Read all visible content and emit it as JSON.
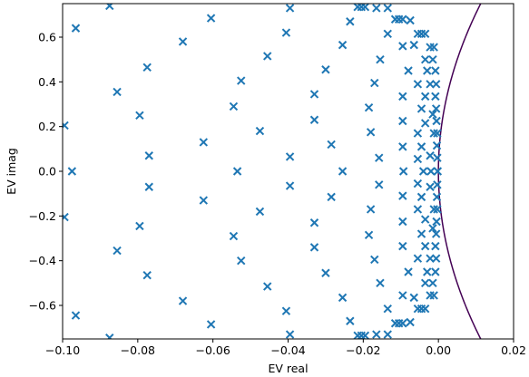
{
  "chart_data": {
    "type": "scatter",
    "title": "",
    "xlabel": "EV real",
    "ylabel": "EV imag",
    "xlim": [
      -0.1,
      0.02
    ],
    "ylim": [
      -0.75,
      0.75
    ],
    "xticks": [
      -0.1,
      -0.08,
      -0.06,
      -0.04,
      -0.02,
      0.0,
      0.02
    ],
    "xtick_labels": [
      "−0.10",
      "−0.08",
      "−0.06",
      "−0.04",
      "−0.02",
      "0.00",
      "0.02"
    ],
    "yticks": [
      -0.6,
      -0.4,
      -0.2,
      0.0,
      0.2,
      0.4,
      0.6
    ],
    "ytick_labels": [
      "−0.6",
      "−0.4",
      "−0.2",
      "0.0",
      "0.2",
      "0.4",
      "0.6"
    ],
    "grid": false,
    "legend": "none",
    "marker": "x",
    "marker_color": "#1f77b4",
    "curve_color": "#440154",
    "series": [
      {
        "points": [
          [
            -0.0995,
            0.205
          ],
          [
            -0.0995,
            -0.205
          ],
          [
            -0.0975,
            0.0
          ],
          [
            -0.0965,
            0.64
          ],
          [
            -0.0965,
            -0.645
          ],
          [
            -0.0875,
            0.74
          ],
          [
            -0.0875,
            -0.745
          ],
          [
            -0.0855,
            0.355
          ],
          [
            -0.0855,
            -0.355
          ],
          [
            -0.0795,
            0.25
          ],
          [
            -0.0795,
            -0.245
          ],
          [
            -0.0775,
            0.465
          ],
          [
            -0.0775,
            -0.465
          ],
          [
            -0.077,
            0.07
          ],
          [
            -0.077,
            -0.07
          ],
          [
            -0.068,
            0.58
          ],
          [
            -0.068,
            -0.58
          ],
          [
            -0.0625,
            0.13
          ],
          [
            -0.0625,
            -0.13
          ],
          [
            -0.0605,
            0.685
          ],
          [
            -0.0605,
            -0.685
          ],
          [
            -0.0545,
            0.29
          ],
          [
            -0.0545,
            -0.29
          ],
          [
            -0.0535,
            0.0
          ],
          [
            -0.0525,
            0.405
          ],
          [
            -0.0525,
            -0.4
          ],
          [
            -0.0475,
            0.18
          ],
          [
            -0.0475,
            -0.18
          ],
          [
            -0.0455,
            0.515
          ],
          [
            -0.0455,
            -0.515
          ],
          [
            -0.0405,
            0.62
          ],
          [
            -0.0405,
            -0.625
          ],
          [
            -0.0395,
            0.73
          ],
          [
            -0.0395,
            -0.73
          ],
          [
            -0.0395,
            0.065
          ],
          [
            -0.0395,
            -0.065
          ],
          [
            -0.033,
            0.345
          ],
          [
            -0.033,
            -0.34
          ],
          [
            -0.033,
            0.23
          ],
          [
            -0.033,
            -0.23
          ],
          [
            -0.03,
            0.455
          ],
          [
            -0.03,
            -0.455
          ],
          [
            -0.0285,
            0.12
          ],
          [
            -0.0285,
            -0.115
          ],
          [
            -0.0255,
            0.0
          ],
          [
            -0.0255,
            0.565
          ],
          [
            -0.0255,
            -0.565
          ],
          [
            -0.0235,
            0.67
          ],
          [
            -0.0235,
            -0.67
          ],
          [
            -0.0215,
            0.735
          ],
          [
            -0.0205,
            0.735
          ],
          [
            -0.0195,
            0.735
          ],
          [
            -0.0215,
            -0.735
          ],
          [
            -0.0205,
            -0.735
          ],
          [
            -0.0195,
            -0.735
          ],
          [
            -0.0185,
            0.285
          ],
          [
            -0.0185,
            -0.285
          ],
          [
            -0.018,
            0.175
          ],
          [
            -0.018,
            -0.17
          ],
          [
            -0.017,
            0.395
          ],
          [
            -0.017,
            -0.395
          ],
          [
            -0.0165,
            0.73
          ],
          [
            -0.0165,
            -0.73
          ],
          [
            -0.0158,
            0.06
          ],
          [
            -0.0158,
            -0.06
          ],
          [
            -0.0155,
            0.5
          ],
          [
            -0.0155,
            -0.5
          ],
          [
            -0.0135,
            0.73
          ],
          [
            -0.0135,
            -0.73
          ],
          [
            -0.0135,
            0.615
          ],
          [
            -0.0135,
            -0.615
          ],
          [
            -0.0115,
            0.68
          ],
          [
            -0.0105,
            0.68
          ],
          [
            -0.0095,
            0.68
          ],
          [
            -0.0115,
            -0.68
          ],
          [
            -0.0105,
            -0.68
          ],
          [
            -0.0095,
            -0.68
          ],
          [
            -0.0095,
            0.56
          ],
          [
            -0.0095,
            -0.555
          ],
          [
            -0.0095,
            0.335
          ],
          [
            -0.0095,
            -0.335
          ],
          [
            -0.0095,
            0.225
          ],
          [
            -0.0095,
            -0.225
          ],
          [
            -0.0095,
            0.11
          ],
          [
            -0.0095,
            -0.11
          ],
          [
            -0.0093,
            0.0
          ],
          [
            -0.008,
            0.45
          ],
          [
            -0.008,
            -0.45
          ],
          [
            -0.0075,
            0.675
          ],
          [
            -0.0075,
            -0.675
          ],
          [
            -0.0065,
            0.565
          ],
          [
            -0.0065,
            -0.565
          ],
          [
            -0.0055,
            0.615
          ],
          [
            -0.0045,
            0.615
          ],
          [
            -0.0035,
            0.615
          ],
          [
            -0.0055,
            -0.615
          ],
          [
            -0.0045,
            -0.615
          ],
          [
            -0.0035,
            -0.615
          ],
          [
            -0.0055,
            0.17
          ],
          [
            -0.0055,
            -0.17
          ],
          [
            -0.0055,
            0.055
          ],
          [
            -0.0055,
            -0.055
          ],
          [
            -0.0055,
            0.39
          ],
          [
            -0.0055,
            -0.39
          ],
          [
            -0.0045,
            0.28
          ],
          [
            -0.0045,
            -0.28
          ],
          [
            -0.0045,
            0.11
          ],
          [
            -0.0045,
            -0.115
          ],
          [
            -0.004,
            0.0
          ],
          [
            -0.0035,
            0.215
          ],
          [
            -0.0035,
            -0.215
          ],
          [
            -0.0035,
            0.335
          ],
          [
            -0.0035,
            -0.335
          ],
          [
            -0.0035,
            0.5
          ],
          [
            -0.0035,
            -0.5
          ],
          [
            -0.003,
            0.45
          ],
          [
            -0.003,
            -0.45
          ],
          [
            -0.0022,
            0.555
          ],
          [
            -0.0012,
            0.555
          ],
          [
            -0.0022,
            -0.555
          ],
          [
            -0.0012,
            -0.555
          ],
          [
            -0.0022,
            0.39
          ],
          [
            -0.0022,
            -0.39
          ],
          [
            -0.0022,
            0.07
          ],
          [
            -0.0022,
            -0.07
          ],
          [
            -0.002,
            0.0
          ],
          [
            -0.0015,
            0.5
          ],
          [
            -0.0015,
            -0.5
          ],
          [
            -0.0015,
            0.255
          ],
          [
            -0.0015,
            -0.255
          ],
          [
            -0.0012,
            0.17
          ],
          [
            -0.0012,
            -0.17
          ],
          [
            -0.0008,
            0.45
          ],
          [
            -0.0008,
            -0.45
          ],
          [
            -0.0008,
            0.335
          ],
          [
            -0.0008,
            -0.335
          ],
          [
            -0.0006,
            0.39
          ],
          [
            -0.0006,
            -0.39
          ],
          [
            -0.0006,
            0.28
          ],
          [
            -0.0006,
            -0.28
          ],
          [
            -0.0005,
            0.225
          ],
          [
            -0.0005,
            -0.225
          ],
          [
            -0.0004,
            0.115
          ],
          [
            -0.0004,
            -0.115
          ],
          [
            -0.0003,
            0.06
          ],
          [
            -0.0003,
            -0.06
          ],
          [
            -0.0003,
            0.17
          ],
          [
            -0.0003,
            -0.17
          ],
          [
            -0.0002,
            0.0
          ]
        ]
      }
    ],
    "curve_note": "boundary curve x = 0.02*y^2 drawn as a line"
  }
}
